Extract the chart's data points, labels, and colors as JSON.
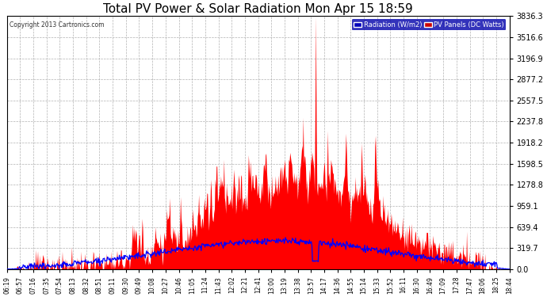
{
  "title": "Total PV Power & Solar Radiation Mon Apr 15 18:59",
  "copyright": "Copyright 2013 Cartronics.com",
  "legend_radiation": "Radiation (W/m2)",
  "legend_pv": "PV Panels (DC Watts)",
  "legend_radiation_bg": "#0000bb",
  "legend_pv_bg": "#cc0000",
  "yticks": [
    0.0,
    319.7,
    639.4,
    959.1,
    1278.8,
    1598.5,
    1918.2,
    2237.8,
    2557.5,
    2877.2,
    3196.9,
    3516.6,
    3836.3
  ],
  "ymax": 3836.3,
  "xtick_labels": [
    "06:19",
    "06:57",
    "07:16",
    "07:35",
    "07:54",
    "08:13",
    "08:32",
    "08:51",
    "09:11",
    "09:30",
    "09:49",
    "10:08",
    "10:27",
    "10:46",
    "11:05",
    "11:24",
    "11:43",
    "12:02",
    "12:21",
    "12:41",
    "13:00",
    "13:19",
    "13:38",
    "13:57",
    "14:17",
    "14:36",
    "14:55",
    "15:14",
    "15:33",
    "15:52",
    "16:11",
    "16:30",
    "16:49",
    "17:09",
    "17:28",
    "17:47",
    "18:06",
    "18:25",
    "18:44"
  ],
  "plot_bg_color": "#ffffff",
  "fig_bg_color": "#ffffff",
  "grid_color": "#aaaaaa",
  "title_color": "#000000",
  "axis_color": "#000000",
  "tick_color": "#000000",
  "pv_color": "#ff0000",
  "radiation_color": "#0000ff"
}
